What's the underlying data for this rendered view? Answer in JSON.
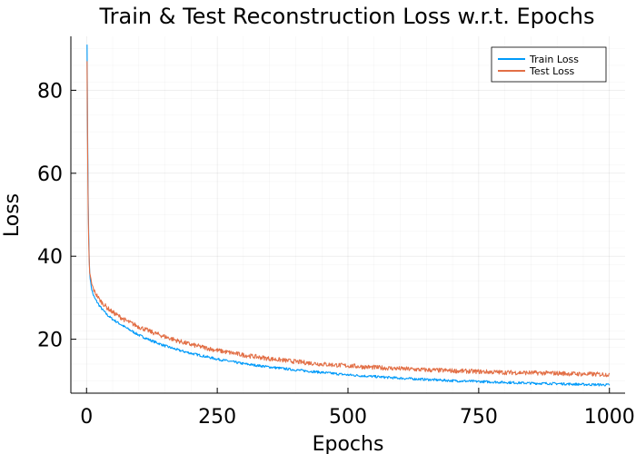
{
  "chart_data": {
    "type": "line",
    "title": "Train & Test Reconstruction Loss w.r.t. Epochs",
    "xlabel": "Epochs",
    "ylabel": "Loss",
    "xlim": [
      -30,
      1030
    ],
    "ylim": [
      7,
      93
    ],
    "xticks": [
      0,
      250,
      500,
      750,
      1000
    ],
    "xtick_labels": [
      "0",
      "250",
      "500",
      "750",
      "1000"
    ],
    "yticks": [
      20,
      40,
      60,
      80
    ],
    "ytick_labels": [
      "20",
      "40",
      "60",
      "80"
    ],
    "grid": true,
    "legend_position": "top-right",
    "series": [
      {
        "name": "Train Loss",
        "color": "#009af9",
        "x": [
          1,
          2,
          3,
          4,
          5,
          6,
          8,
          10,
          12,
          15,
          20,
          25,
          30,
          40,
          50,
          60,
          75,
          100,
          125,
          150,
          175,
          200,
          250,
          300,
          350,
          400,
          450,
          500,
          550,
          600,
          650,
          700,
          750,
          800,
          850,
          900,
          950,
          1000
        ],
        "y": [
          91,
          70,
          55,
          46,
          40,
          36,
          33.5,
          32,
          31,
          30,
          29,
          28,
          27.2,
          25.8,
          24.8,
          24,
          22.8,
          21,
          19.6,
          18.4,
          17.4,
          16.6,
          15.2,
          14.1,
          13.3,
          12.6,
          12,
          11.4,
          11,
          10.6,
          10.3,
          10,
          9.8,
          9.6,
          9.4,
          9.3,
          9.1,
          9
        ]
      },
      {
        "name": "Test Loss",
        "color": "#e26f46",
        "x": [
          1,
          2,
          3,
          4,
          5,
          6,
          8,
          10,
          12,
          15,
          20,
          25,
          30,
          40,
          50,
          60,
          75,
          100,
          125,
          150,
          175,
          200,
          250,
          300,
          350,
          400,
          450,
          500,
          550,
          600,
          650,
          700,
          750,
          800,
          850,
          900,
          950,
          1000
        ],
        "y": [
          87,
          66,
          52,
          44,
          39,
          36,
          34.5,
          33.2,
          32.5,
          31.5,
          30.5,
          29.5,
          28.8,
          27.5,
          26.5,
          25.7,
          24.5,
          23,
          21.7,
          20.6,
          19.6,
          18.7,
          17.3,
          16.2,
          15.3,
          14.6,
          14,
          13.6,
          13.2,
          12.9,
          12.6,
          12.4,
          12.2,
          12,
          11.9,
          11.8,
          11.6,
          11.5
        ]
      }
    ]
  }
}
